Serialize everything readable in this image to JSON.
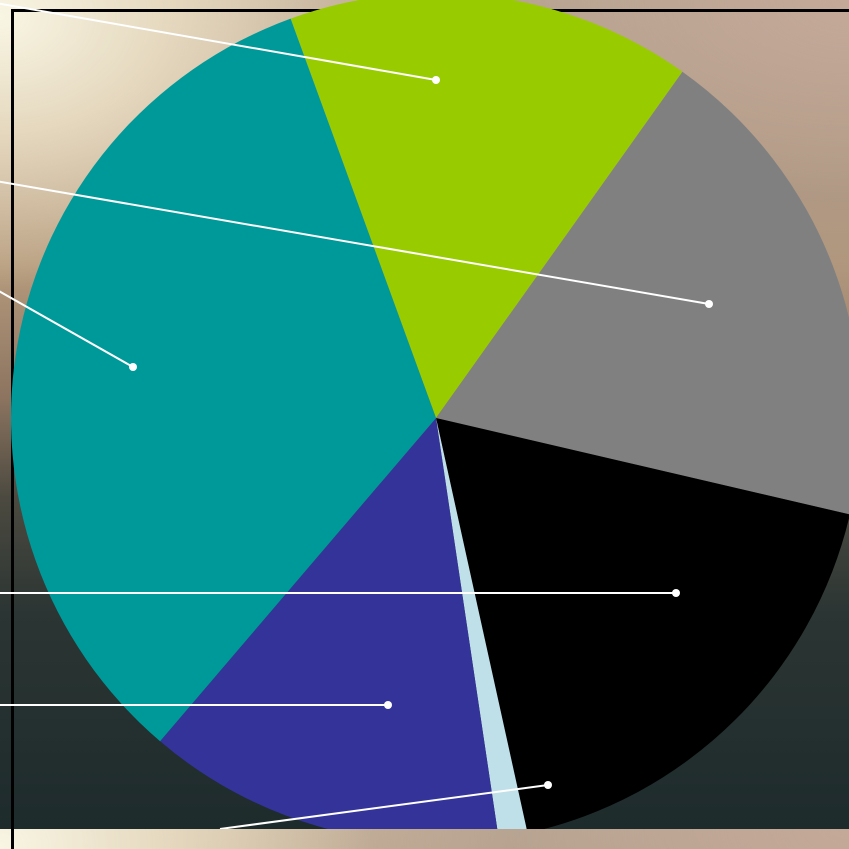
{
  "chart_data": {
    "type": "pie",
    "title": "",
    "slices": [
      {
        "value": 15.4,
        "color": "#99cc00"
      },
      {
        "value": 18.8,
        "color": "#808080"
      },
      {
        "value": 17.9,
        "color": "#000000"
      },
      {
        "value": 1.1,
        "color": "#bfe0e8"
      },
      {
        "value": 13.6,
        "color": "#333399"
      },
      {
        "value": 33.2,
        "color": "#009999"
      }
    ],
    "start_angle_deg": -20,
    "legend": "none",
    "data_labels": "none"
  }
}
